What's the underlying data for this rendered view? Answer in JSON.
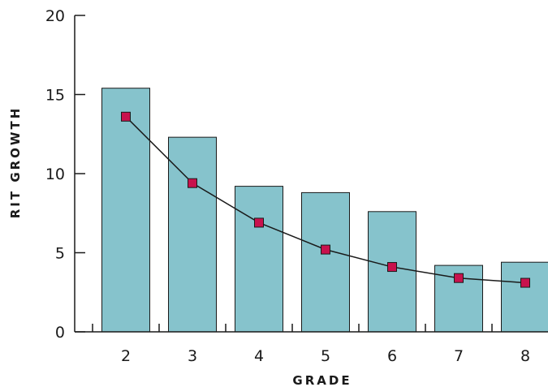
{
  "chart_data": {
    "type": "bar",
    "title": "",
    "xlabel": "GRADE",
    "ylabel": "RIT GROWTH",
    "categories": [
      "2",
      "3",
      "4",
      "5",
      "6",
      "7",
      "8"
    ],
    "series": [
      {
        "type": "bar",
        "values": [
          15.4,
          12.3,
          9.2,
          8.8,
          7.6,
          4.2,
          4.4
        ],
        "color": "#86c3cc"
      },
      {
        "type": "line",
        "values": [
          13.6,
          9.4,
          6.9,
          5.2,
          4.1,
          3.4,
          3.1
        ],
        "color": "#c8124d"
      }
    ],
    "ylim": [
      0,
      20
    ],
    "yticks": [
      "0",
      "5",
      "10",
      "15",
      "20"
    ],
    "grid": false,
    "legend": "none"
  }
}
